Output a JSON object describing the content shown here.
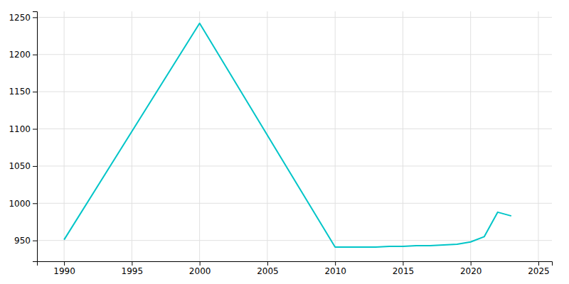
{
  "chart_data": {
    "type": "line",
    "x": [
      1990,
      2000,
      2010,
      2011,
      2012,
      2013,
      2014,
      2015,
      2016,
      2017,
      2018,
      2019,
      2020,
      2021,
      2022,
      2023
    ],
    "values": [
      951,
      1242,
      941,
      941,
      941,
      941,
      942,
      942,
      943,
      943,
      944,
      945,
      948,
      955,
      988,
      983
    ],
    "color": "#00C5C8",
    "xlim": [
      1988,
      2026
    ],
    "ylim": [
      922,
      1258
    ],
    "xticks": [
      1990,
      1995,
      2000,
      2005,
      2010,
      2015,
      2020,
      2025
    ],
    "yticks": [
      950,
      1000,
      1050,
      1100,
      1150,
      1200,
      1250
    ],
    "grid": true
  }
}
